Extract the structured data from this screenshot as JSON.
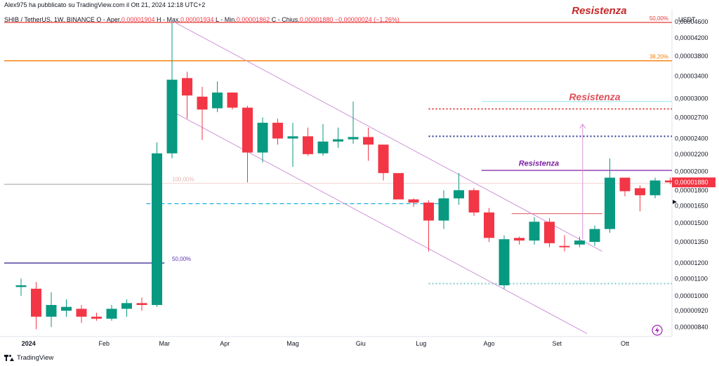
{
  "header": {
    "published": "Alex975 ha pubblicato su TradingView.com il Ott 21, 2024 12:18 UTC+2",
    "symbol": "SHIB / TetherUS, 1W, BINANCE",
    "ohlc": [
      {
        "label": "O - Aper.",
        "value": "0,00001904"
      },
      {
        "label": "H - Max.",
        "value": "0,00001934"
      },
      {
        "label": "L - Min.",
        "value": "0,00001862"
      },
      {
        "label": "C - Chius.",
        "value": "0,00001880"
      }
    ],
    "change": "−0,00000024 (−1,26%)"
  },
  "footer": {
    "brand": "TradingView"
  },
  "colors": {
    "up": "#089981",
    "down": "#f23645"
  },
  "chart_data": {
    "type": "candlestick",
    "currency_label": "USDT",
    "y_scale": "log",
    "ylim": [
      8e-06,
      4.8e-06
    ],
    "y_ticks": [
      {
        "label": "0,00004600",
        "value": 4.6e-05
      },
      {
        "label": "0,00004200",
        "value": 4.2e-05
      },
      {
        "label": "0,00003800",
        "value": 3.8e-05
      },
      {
        "label": "0,00003400",
        "value": 3.4e-05
      },
      {
        "label": "0,00003000",
        "value": 3e-05
      },
      {
        "label": "0,00002700",
        "value": 2.7e-05
      },
      {
        "label": "0,00002400",
        "value": 2.4e-05
      },
      {
        "label": "0,00002200",
        "value": 2.2e-05
      },
      {
        "label": "0,00002000",
        "value": 2e-05
      },
      {
        "label": "0,00001800",
        "value": 1.8e-05
      },
      {
        "label": "0,00001650",
        "value": 1.65e-05
      },
      {
        "label": "0,00001500",
        "value": 1.5e-05
      },
      {
        "label": "0,00001350",
        "value": 1.35e-05
      },
      {
        "label": "0,00001200",
        "value": 1.2e-05
      },
      {
        "label": "0,00001100",
        "value": 1.1e-05
      },
      {
        "label": "0,00001000",
        "value": 1e-05
      },
      {
        "label": "0,00000920",
        "value": 9.2e-06
      },
      {
        "label": "0,00000840",
        "value": 8.4e-06
      }
    ],
    "last_price": {
      "label": "0,00001880",
      "value": 1.88e-05
    },
    "x_labels": [
      {
        "label": "2024",
        "idx": 0.5
      },
      {
        "label": "Feb",
        "idx": 5.5
      },
      {
        "label": "Mar",
        "idx": 9.5
      },
      {
        "label": "Apr",
        "idx": 13.5
      },
      {
        "label": "Mag",
        "idx": 18
      },
      {
        "label": "Giu",
        "idx": 22.5
      },
      {
        "label": "Lug",
        "idx": 26.5
      },
      {
        "label": "Ago",
        "idx": 31
      },
      {
        "label": "Set",
        "idx": 35.5
      },
      {
        "label": "Ott",
        "idx": 40
      }
    ],
    "candles": [
      {
        "o": 1.05e-05,
        "h": 1.1e-05,
        "l": 1e-05,
        "c": 1.06e-05
      },
      {
        "o": 1.04e-05,
        "h": 1.08e-05,
        "l": 8.3e-06,
        "c": 8.9e-06
      },
      {
        "o": 8.9e-06,
        "h": 1.02e-05,
        "l": 8.4e-06,
        "c": 9.5e-06
      },
      {
        "o": 9.2e-06,
        "h": 9.8e-06,
        "l": 8.9e-06,
        "c": 9.4e-06
      },
      {
        "o": 9.3e-06,
        "h": 9.5e-06,
        "l": 8.6e-06,
        "c": 8.9e-06
      },
      {
        "o": 8.9e-06,
        "h": 9.1e-06,
        "l": 8.7e-06,
        "c": 8.8e-06
      },
      {
        "o": 8.8e-06,
        "h": 9.5e-06,
        "l": 8.7e-06,
        "c": 9.3e-06
      },
      {
        "o": 9.3e-06,
        "h": 9.8e-06,
        "l": 8.9e-06,
        "c": 9.6e-06
      },
      {
        "o": 9.6e-06,
        "h": 9.9e-06,
        "l": 9.2e-06,
        "c": 9.5e-06
      },
      {
        "o": 9.5e-06,
        "h": 2.35e-05,
        "l": 9.4e-06,
        "c": 2.21e-05
      },
      {
        "o": 2.21e-05,
        "h": 4.58e-05,
        "l": 2.15e-05,
        "c": 3.33e-05
      },
      {
        "o": 3.36e-05,
        "h": 3.48e-05,
        "l": 2.68e-05,
        "c": 3.05e-05
      },
      {
        "o": 3.03e-05,
        "h": 3.2e-05,
        "l": 2.38e-05,
        "c": 2.82e-05
      },
      {
        "o": 2.84e-05,
        "h": 3.3e-05,
        "l": 2.78e-05,
        "c": 3.1e-05
      },
      {
        "o": 3.1e-05,
        "h": 3.1e-05,
        "l": 2.82e-05,
        "c": 2.85e-05
      },
      {
        "o": 2.85e-05,
        "h": 2.88e-05,
        "l": 1.88e-05,
        "c": 2.22e-05
      },
      {
        "o": 2.22e-05,
        "h": 2.7e-05,
        "l": 2.1e-05,
        "c": 2.62e-05
      },
      {
        "o": 2.62e-05,
        "h": 2.68e-05,
        "l": 2.32e-05,
        "c": 2.4e-05
      },
      {
        "o": 2.4e-05,
        "h": 2.62e-05,
        "l": 2.05e-05,
        "c": 2.43e-05
      },
      {
        "o": 2.43e-05,
        "h": 2.55e-05,
        "l": 2.18e-05,
        "c": 2.2e-05
      },
      {
        "o": 2.21e-05,
        "h": 2.6e-05,
        "l": 2.18e-05,
        "c": 2.36e-05
      },
      {
        "o": 2.36e-05,
        "h": 2.55e-05,
        "l": 2.28e-05,
        "c": 2.39e-05
      },
      {
        "o": 2.39e-05,
        "h": 2.95e-05,
        "l": 2.33e-05,
        "c": 2.42e-05
      },
      {
        "o": 2.42e-05,
        "h": 2.55e-05,
        "l": 2.12e-05,
        "c": 2.32e-05
      },
      {
        "o": 2.32e-05,
        "h": 2.32e-05,
        "l": 1.9e-05,
        "c": 1.98e-05
      },
      {
        "o": 1.98e-05,
        "h": 1.98e-05,
        "l": 1.72e-05,
        "c": 1.71e-05
      },
      {
        "o": 1.71e-05,
        "h": 1.72e-05,
        "l": 1.64e-05,
        "c": 1.68e-05
      },
      {
        "o": 1.68e-05,
        "h": 1.7e-05,
        "l": 1.28e-05,
        "c": 1.52e-05
      },
      {
        "o": 1.52e-05,
        "h": 1.8e-05,
        "l": 1.45e-05,
        "c": 1.72e-05
      },
      {
        "o": 1.72e-05,
        "h": 1.98e-05,
        "l": 1.66e-05,
        "c": 1.8e-05
      },
      {
        "o": 1.8e-05,
        "h": 1.82e-05,
        "l": 1.56e-05,
        "c": 1.59e-05
      },
      {
        "o": 1.59e-05,
        "h": 1.63e-05,
        "l": 1.35e-05,
        "c": 1.38e-05
      },
      {
        "o": 1.06e-05,
        "h": 1.4e-05,
        "l": 1.04e-05,
        "c": 1.37e-05
      },
      {
        "o": 1.38e-05,
        "h": 1.39e-05,
        "l": 1.33e-05,
        "c": 1.36e-05
      },
      {
        "o": 1.36e-05,
        "h": 1.55e-05,
        "l": 1.33e-05,
        "c": 1.51e-05
      },
      {
        "o": 1.51e-05,
        "h": 1.54e-05,
        "l": 1.31e-05,
        "c": 1.34e-05
      },
      {
        "o": 1.32e-05,
        "h": 1.4e-05,
        "l": 1.28e-05,
        "c": 1.31e-05
      },
      {
        "o": 1.33e-05,
        "h": 1.39e-05,
        "l": 1.31e-05,
        "c": 1.36e-05
      },
      {
        "o": 1.35e-05,
        "h": 1.48e-05,
        "l": 1.32e-05,
        "c": 1.45e-05
      },
      {
        "o": 1.45e-05,
        "h": 2.15e-05,
        "l": 1.42e-05,
        "c": 1.93e-05
      },
      {
        "o": 1.93e-05,
        "h": 1.93e-05,
        "l": 1.74e-05,
        "c": 1.79e-05
      },
      {
        "o": 1.82e-05,
        "h": 1.85e-05,
        "l": 1.6e-05,
        "c": 1.75e-05
      },
      {
        "o": 1.75e-05,
        "h": 1.93e-05,
        "l": 1.72e-05,
        "c": 1.9e-05
      },
      {
        "o": 1.9e-05,
        "h": 1.93e-05,
        "l": 1.86e-05,
        "c": 1.88e-05
      }
    ],
    "fib_labels": [
      {
        "label": "50,00%",
        "value": 4.58e-05
      },
      {
        "label": "38,20%",
        "value": 3.7e-05
      },
      {
        "label": "100,00%",
        "value": 1.87e-05
      },
      {
        "label": "50,00%",
        "value": 1.2e-05
      }
    ],
    "levels": [
      {
        "value": 4.58e-05,
        "from_idx": -1,
        "style": "solid",
        "color": "#e53935"
      },
      {
        "value": 3.7e-05,
        "from_idx": -1,
        "style": "solid",
        "color": "#f57c00"
      },
      {
        "value": 1.2e-05,
        "from_idx": -1,
        "to_idx": 9.5,
        "style": "solid",
        "color": "#311b92"
      },
      {
        "value": 1.86e-05,
        "from_idx": -1,
        "to_idx": 9.2,
        "style": "solid",
        "color": "#b0b0b0"
      },
      {
        "value": 1.87e-05,
        "from_idx": 9.2,
        "style": "solid",
        "color": "#f5dcdc"
      },
      {
        "value": 1.67e-05,
        "from_idx": 8.3,
        "to_idx": 28,
        "style": "dashed",
        "color": "#1ab0e0"
      },
      {
        "value": 2.83e-05,
        "from_idx": 27,
        "style": "dotted",
        "color": "#e53935"
      },
      {
        "value": 2.43e-05,
        "from_idx": 27,
        "style": "dotted",
        "color": "#283593"
      },
      {
        "value": 2.95e-05,
        "from_idx": 30.5,
        "style": "solid",
        "color": "#b2ebf2"
      },
      {
        "value": 2.01e-05,
        "from_idx": 30.5,
        "style": "solid",
        "color": "#7b1fa2"
      },
      {
        "value": 1.58e-05,
        "from_idx": 32.5,
        "to_idx": 38.5,
        "style": "solid",
        "color": "#e57373"
      },
      {
        "value": 1.07e-05,
        "from_idx": 27,
        "style": "dotted",
        "color": "#80cbc4"
      }
    ],
    "channel": {
      "upper": {
        "from": {
          "idx": 10.1,
          "value": 4.6e-05
        },
        "to": {
          "idx": 38.5,
          "value": 1.28e-05
        }
      },
      "lower": {
        "from": {
          "idx": 10.1,
          "value": 2.78e-05
        },
        "to": {
          "idx": 37.5,
          "value": 8.1e-06
        }
      }
    },
    "projection_arrow": {
      "idx": 37.2,
      "from": 1.37e-05,
      "to": 2.6e-05
    },
    "annotations": [
      {
        "text": "Resistenza",
        "color": "#c62828",
        "size": 15,
        "idx": 38.3,
        "value": 4.8e-05
      },
      {
        "text": "Resistenza",
        "color": "#e0505a",
        "size": 14,
        "idx": 38,
        "value": 2.97e-05
      },
      {
        "text": "Resistenza",
        "color": "#7b1fa2",
        "size": 11,
        "idx": 34.3,
        "value": 2.06e-05
      }
    ]
  }
}
